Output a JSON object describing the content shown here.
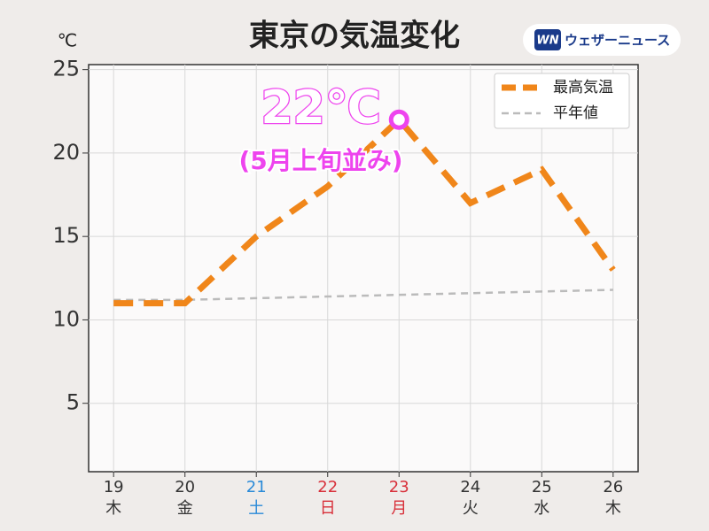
{
  "chart_data": {
    "type": "line",
    "title": "東京の気温変化",
    "y_unit": "℃",
    "brand": {
      "badge": "WN",
      "name": "ウェザーニュース"
    },
    "categories": [
      "19",
      "20",
      "21",
      "22",
      "23",
      "24",
      "25",
      "26"
    ],
    "weekdays": [
      "木",
      "金",
      "土",
      "日",
      "月",
      "火",
      "水",
      "木"
    ],
    "category_colors": [
      "#333333",
      "#333333",
      "#2a8ad8",
      "#d8303a",
      "#d8303a",
      "#333333",
      "#333333",
      "#333333"
    ],
    "series": [
      {
        "name": "最高気温",
        "color": "#f0861a",
        "values": [
          11,
          11,
          15,
          18,
          22,
          17,
          19,
          13
        ]
      },
      {
        "name": "平年値",
        "color": "#bbbbbb",
        "values": [
          11.2,
          11.2,
          11.3,
          11.4,
          11.5,
          11.6,
          11.7,
          11.8
        ]
      }
    ],
    "ylim": [
      0.9,
      25.3
    ],
    "yticks": [
      5,
      10,
      15,
      20,
      25
    ],
    "grid": true,
    "legend": "upper right",
    "annotation": {
      "text": "22℃",
      "subtext": "(5月上旬並み)",
      "series": 0,
      "index": 4,
      "color": "#ee44ee"
    }
  }
}
